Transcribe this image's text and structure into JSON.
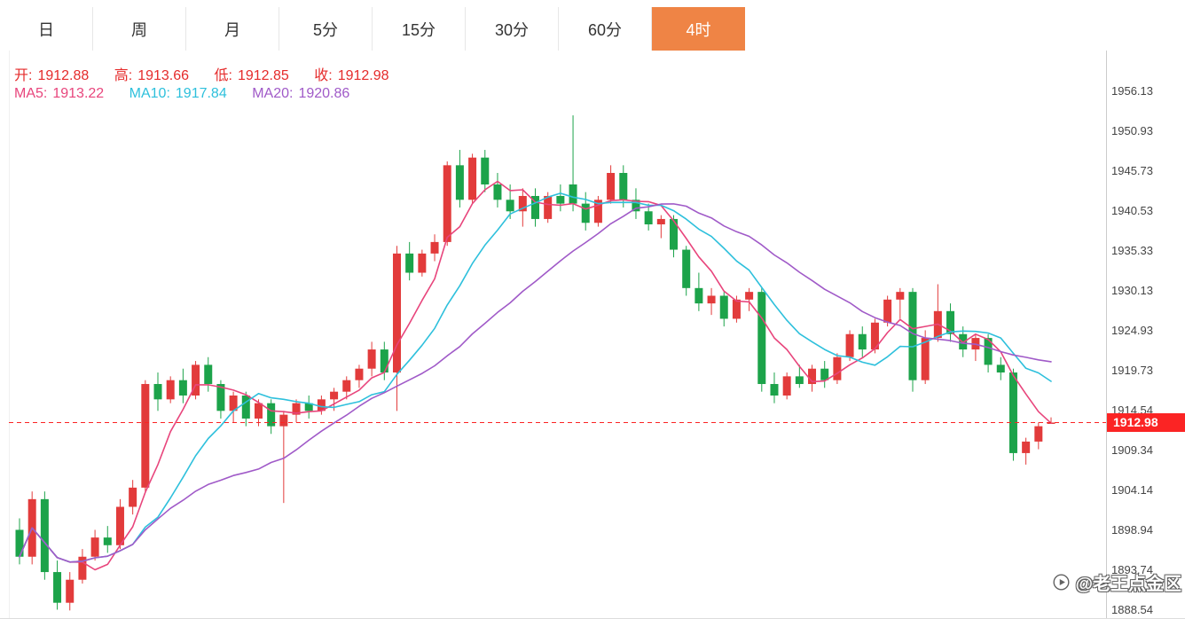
{
  "tabs": {
    "items": [
      {
        "label": "日"
      },
      {
        "label": "周"
      },
      {
        "label": "月"
      },
      {
        "label": "5分"
      },
      {
        "label": "15分"
      },
      {
        "label": "30分"
      },
      {
        "label": "60分"
      },
      {
        "label": "4时"
      }
    ],
    "active_index": 7
  },
  "ohlc": [
    {
      "label": "开:",
      "value": "1912.88"
    },
    {
      "label": "高:",
      "value": "1913.66"
    },
    {
      "label": "低:",
      "value": "1912.85"
    },
    {
      "label": "收:",
      "value": "1912.98"
    }
  ],
  "price": {
    "current": "1912.98"
  },
  "watermark": {
    "text": "@老王点金区"
  },
  "colors": {
    "up": "#e23b3b",
    "down": "#1ca34a",
    "accent": "#ef8445",
    "price_line": "#fb2424",
    "legend_red": "#e52b2b"
  },
  "chart_data": {
    "type": "candlestick",
    "title": "",
    "y_ticks": [
      "1956.13",
      "1950.93",
      "1945.73",
      "1940.53",
      "1935.33",
      "1930.13",
      "1924.93",
      "1919.73",
      "1914.54",
      "1909.34",
      "1904.14",
      "1898.94",
      "1893.74",
      "1888.54"
    ],
    "y_max": 1956.13,
    "y_min": 1888.54,
    "grid": false,
    "ma_series": [
      {
        "label": "MA5:",
        "value": "1913.22",
        "period": 5,
        "color": "#e8457c"
      },
      {
        "label": "MA10:",
        "value": "1917.84",
        "period": 10,
        "color": "#2ec0dc"
      },
      {
        "label": "MA20:",
        "value": "1920.86",
        "period": 20,
        "color": "#a05ac8"
      }
    ],
    "candles": [
      [
        1899.0,
        1900.5,
        1894.5,
        1895.5
      ],
      [
        1895.5,
        1904.0,
        1894.5,
        1903.0
      ],
      [
        1903.0,
        1904.0,
        1892.5,
        1893.5
      ],
      [
        1893.5,
        1895.0,
        1888.6,
        1889.5
      ],
      [
        1889.5,
        1893.5,
        1888.5,
        1892.5
      ],
      [
        1892.5,
        1896.5,
        1892.0,
        1895.5
      ],
      [
        1895.5,
        1899.0,
        1895.0,
        1898.0
      ],
      [
        1898.0,
        1899.5,
        1896.0,
        1897.0
      ],
      [
        1897.0,
        1903.0,
        1896.5,
        1902.0
      ],
      [
        1902.0,
        1905.5,
        1901.0,
        1904.5
      ],
      [
        1904.5,
        1918.5,
        1904.0,
        1918.0
      ],
      [
        1918.0,
        1919.5,
        1914.5,
        1916.0
      ],
      [
        1916.0,
        1919.0,
        1915.5,
        1918.5
      ],
      [
        1918.5,
        1920.0,
        1915.5,
        1916.5
      ],
      [
        1916.5,
        1921.0,
        1916.0,
        1920.5
      ],
      [
        1920.5,
        1921.5,
        1917.0,
        1918.0
      ],
      [
        1918.0,
        1918.5,
        1913.5,
        1914.5
      ],
      [
        1914.5,
        1917.0,
        1913.0,
        1916.5
      ],
      [
        1916.5,
        1917.0,
        1912.5,
        1913.5
      ],
      [
        1913.5,
        1916.0,
        1912.5,
        1915.5
      ],
      [
        1915.5,
        1916.0,
        1911.5,
        1912.5
      ],
      [
        1912.5,
        1914.5,
        1902.5,
        1914.0
      ],
      [
        1914.0,
        1916.0,
        1913.0,
        1915.5
      ],
      [
        1915.5,
        1916.5,
        1913.5,
        1914.5
      ],
      [
        1914.5,
        1916.5,
        1914.0,
        1916.0
      ],
      [
        1916.0,
        1917.5,
        1914.5,
        1917.0
      ],
      [
        1917.0,
        1919.0,
        1916.0,
        1918.5
      ],
      [
        1918.5,
        1920.5,
        1917.5,
        1920.0
      ],
      [
        1920.0,
        1923.5,
        1919.0,
        1922.5
      ],
      [
        1922.5,
        1923.5,
        1918.5,
        1919.5
      ],
      [
        1919.5,
        1936.0,
        1914.5,
        1935.0
      ],
      [
        1935.0,
        1936.5,
        1931.5,
        1932.5
      ],
      [
        1932.5,
        1935.5,
        1932.0,
        1935.0
      ],
      [
        1935.0,
        1937.5,
        1934.0,
        1936.5
      ],
      [
        1936.5,
        1947.0,
        1936.0,
        1946.5
      ],
      [
        1946.5,
        1948.5,
        1941.0,
        1942.0
      ],
      [
        1942.0,
        1948.0,
        1941.5,
        1947.5
      ],
      [
        1947.5,
        1948.5,
        1943.0,
        1944.0
      ],
      [
        1944.0,
        1945.5,
        1941.0,
        1942.0
      ],
      [
        1942.0,
        1944.0,
        1939.5,
        1940.5
      ],
      [
        1940.5,
        1943.5,
        1938.5,
        1942.5
      ],
      [
        1942.5,
        1943.5,
        1938.5,
        1939.5
      ],
      [
        1939.5,
        1943.0,
        1939.0,
        1942.5
      ],
      [
        1942.5,
        1944.0,
        1940.5,
        1941.5
      ],
      [
        1944.0,
        1953.0,
        1940.5,
        1941.5
      ],
      [
        1941.5,
        1943.0,
        1938.0,
        1939.0
      ],
      [
        1939.0,
        1942.5,
        1938.5,
        1942.0
      ],
      [
        1942.0,
        1946.5,
        1941.5,
        1945.5
      ],
      [
        1945.5,
        1946.5,
        1941.0,
        1942.0
      ],
      [
        1942.0,
        1943.5,
        1939.5,
        1940.5
      ],
      [
        1940.5,
        1941.5,
        1938.0,
        1938.8
      ],
      [
        1938.8,
        1940.0,
        1937.0,
        1939.5
      ],
      [
        1939.5,
        1940.0,
        1934.5,
        1935.5
      ],
      [
        1935.5,
        1936.0,
        1929.5,
        1930.5
      ],
      [
        1930.5,
        1932.5,
        1927.5,
        1928.5
      ],
      [
        1928.5,
        1930.5,
        1927.0,
        1929.5
      ],
      [
        1929.5,
        1930.0,
        1925.5,
        1926.5
      ],
      [
        1926.5,
        1929.5,
        1926.0,
        1929.0
      ],
      [
        1929.0,
        1930.5,
        1927.5,
        1930.0
      ],
      [
        1930.0,
        1930.5,
        1917.0,
        1918.0
      ],
      [
        1918.0,
        1919.5,
        1915.5,
        1916.5
      ],
      [
        1916.5,
        1919.5,
        1916.0,
        1919.0
      ],
      [
        1919.0,
        1920.5,
        1917.5,
        1918.0
      ],
      [
        1918.0,
        1920.5,
        1917.0,
        1920.0
      ],
      [
        1920.0,
        1921.0,
        1917.5,
        1918.5
      ],
      [
        1918.5,
        1922.0,
        1918.0,
        1921.5
      ],
      [
        1921.5,
        1925.0,
        1921.0,
        1924.5
      ],
      [
        1924.5,
        1925.5,
        1921.5,
        1922.5
      ],
      [
        1922.5,
        1926.5,
        1922.0,
        1926.0
      ],
      [
        1926.0,
        1929.5,
        1925.5,
        1929.0
      ],
      [
        1929.0,
        1930.5,
        1926.5,
        1930.0
      ],
      [
        1930.0,
        1930.5,
        1917.0,
        1918.5
      ],
      [
        1918.5,
        1925.0,
        1918.0,
        1924.0
      ],
      [
        1924.0,
        1931.0,
        1923.5,
        1927.5
      ],
      [
        1927.5,
        1928.5,
        1923.5,
        1924.5
      ],
      [
        1924.5,
        1925.5,
        1921.5,
        1922.5
      ],
      [
        1922.5,
        1924.5,
        1921.0,
        1924.0
      ],
      [
        1924.0,
        1924.5,
        1919.5,
        1920.5
      ],
      [
        1920.5,
        1921.5,
        1918.5,
        1919.5
      ],
      [
        1919.5,
        1920.0,
        1908.0,
        1909.0
      ],
      [
        1909.0,
        1911.0,
        1907.5,
        1910.5
      ],
      [
        1910.5,
        1913.0,
        1909.5,
        1912.5
      ],
      [
        1912.88,
        1913.66,
        1912.85,
        1912.98
      ]
    ]
  }
}
